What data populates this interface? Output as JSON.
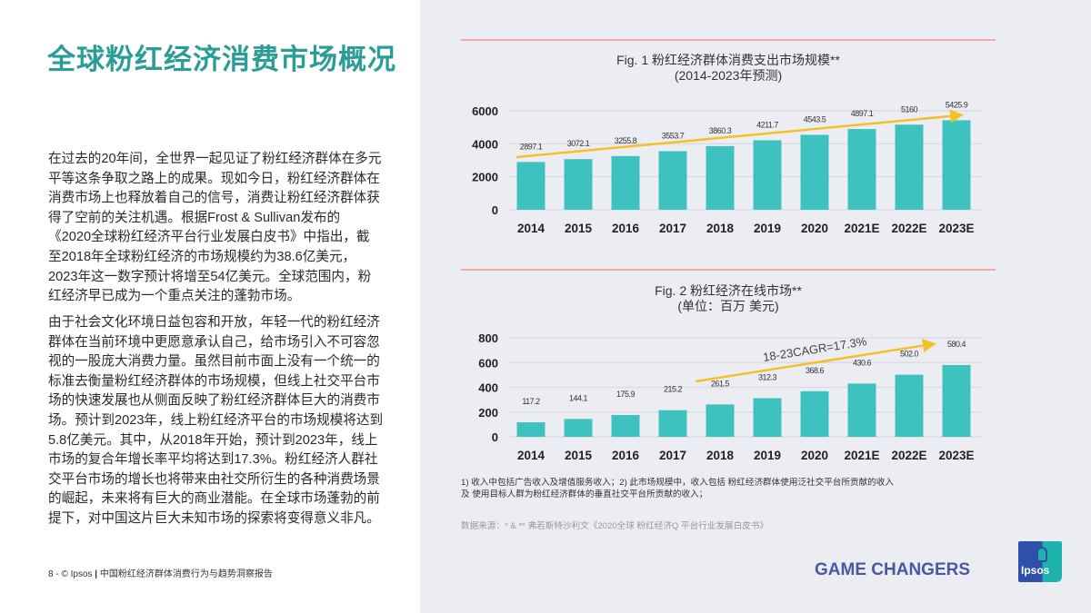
{
  "page": {
    "title": "全球粉红经济消费市场概况",
    "paragraph1": [
      "在过去的20年间，全世界一起见证了粉红经济群体在多元",
      "平等这条争取之路上的成果。现如今日，粉红经济群体在",
      "消费市场上也释放着自己的信号，消费让粉红经济群体获",
      "得了空前的关注机遇。根据Frost & Sullivan发布的",
      "《2020全球粉红经济平台行业发展白皮书》中指出，截",
      "至2018年全球粉红经济的市场规模约为38.6亿美元，",
      "2023年这一数字预计将增至54亿美元。全球范围内，粉",
      "红经济早已成为一个重点关注的蓬勃市场。"
    ],
    "paragraph2": [
      "由于社会文化环境日益包容和开放，年轻一代的粉红经济",
      "群体在当前环境中更愿意承认自己，给市场引入不可容忽",
      "视的一股庞大消费力量。虽然目前市面上没有一个统一的",
      "标准去衡量粉红经济群体的市场规模，但线上社交平台市",
      "场的快速发展也从侧面反映了粉红经济群体巨大的消费市",
      "场。预计到2023年，线上粉红经济平台的市场规模将达到",
      "5.8亿美元。其中，从2018年开始，预计到2023年，线上",
      "市场的复合年增长率平均将达到17.3%。粉红经济人群社",
      "交平台市场的增长也将带来由社交所衍生的各种消费场景",
      "的崛起，未来将有巨大的商业潜能。在全球市场蓬勃的前",
      "提下，对中国这片巨大未知市场的探索将变得意义非凡。"
    ],
    "footer_page": "8",
    "footer_brand": "© Ipsos",
    "footer_report": "中国粉红经济群体消费行为与趋势洞察报告",
    "note": [
      "1) 收入中包括广告收入及增值服务收入；2) 此市场规模中，收入包括 粉红经济群体使用泛社交平台所贡献的收入",
      "及 使用目标人群为粉红经济群体的垂直社交平台所贡献的收入；"
    ],
    "source": "数据来源：* & ** 弗若斯特沙利文《2020全球 粉红经济Q 平台行业发展白皮书》",
    "tagline": "GAME CHANGERS",
    "logo_text": "Ipsos"
  },
  "colors": {
    "bar": "#3ec2c0",
    "trend": "#f4c02a",
    "title": "#2a9d97",
    "divider": "#f2a7a7",
    "brand": "#4a57a3"
  },
  "chart_data": [
    {
      "type": "bar",
      "title": "Fig. 1 粉红经济群体消费支出市场规模**",
      "subtitle": "(2014-2023年预测)",
      "categories": [
        "2014",
        "2015",
        "2016",
        "2017",
        "2018",
        "2019",
        "2020",
        "2021E",
        "2022E",
        "2023E"
      ],
      "values": [
        2897.1,
        3072.1,
        3255.8,
        3553.7,
        3860.3,
        4211.7,
        4543.5,
        4897.1,
        5160,
        5425.9
      ],
      "labels": [
        "2897.1",
        "3072.1",
        "3255.8",
        "3553.7",
        "3860.3",
        "4211.7",
        "4543.5",
        "4897.1",
        "5160",
        "5425.9"
      ],
      "yticks": [
        "0",
        "2000",
        "4000",
        "6000"
      ],
      "ylim": [
        0,
        6000
      ],
      "grid": true,
      "trend_arrow": true
    },
    {
      "type": "bar",
      "title": "Fig. 2 粉红经济在线市场**",
      "subtitle": "(单位：百万 美元)",
      "categories": [
        "2014",
        "2015",
        "2016",
        "2017",
        "2018",
        "2019",
        "2020",
        "2021E",
        "2022E",
        "2023E"
      ],
      "values": [
        117.2,
        144.1,
        175.9,
        215.2,
        261.5,
        312.3,
        368.6,
        430.6,
        502.0,
        580.4
      ],
      "labels": [
        "117.2",
        "144.1",
        "175.9",
        "215.2",
        "261.5",
        "312.3",
        "368.6",
        "430.6",
        "502.0",
        "580.4"
      ],
      "yticks": [
        "0",
        "200",
        "400",
        "600",
        "800"
      ],
      "ylim": [
        0,
        800
      ],
      "grid": true,
      "annotation": "18-23CAGR=17.3%"
    }
  ]
}
